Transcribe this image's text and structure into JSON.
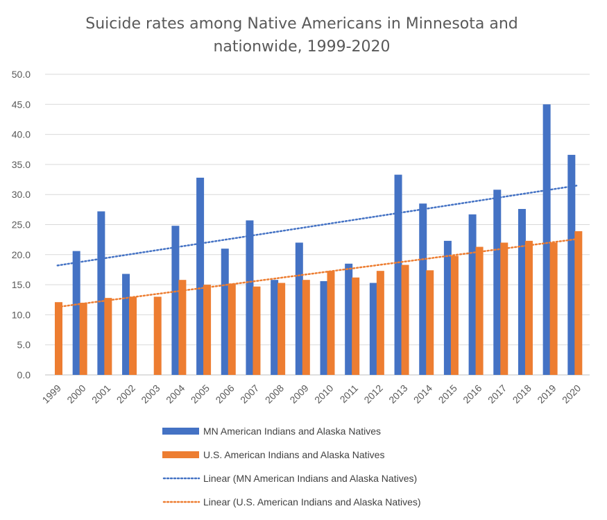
{
  "chart_data": {
    "type": "bar",
    "title": "Suicide rates among Native Americans in Minnesota and nationwide, 1999-2020",
    "categories": [
      "1999",
      "2000",
      "2001",
      "2002",
      "2003",
      "2004",
      "2005",
      "2006",
      "2007",
      "2008",
      "2009",
      "2010",
      "2011",
      "2012",
      "2013",
      "2014",
      "2015",
      "2016",
      "2017",
      "2018",
      "2019",
      "2020"
    ],
    "series": [
      {
        "name": "MN American Indians and Alaska Natives",
        "color": "#4472C4",
        "values": [
          0,
          20.6,
          27.2,
          16.8,
          0,
          24.8,
          32.8,
          21.0,
          25.7,
          15.8,
          22.0,
          15.6,
          18.5,
          15.3,
          33.3,
          28.5,
          22.3,
          26.7,
          30.8,
          27.6,
          45.0,
          36.6
        ]
      },
      {
        "name": "U.S. American Indians and Alaska Natives",
        "color": "#ED7D31",
        "values": [
          12.1,
          12.0,
          12.8,
          13.0,
          13.0,
          15.8,
          15.0,
          15.2,
          14.7,
          15.3,
          15.8,
          17.3,
          16.2,
          17.3,
          18.3,
          17.4,
          19.8,
          21.3,
          22.0,
          22.3,
          22.0,
          23.9
        ]
      }
    ],
    "trendlines": [
      {
        "name": "Linear (MN American Indians and Alaska Natives)",
        "color": "#4472C4",
        "start": 18.2,
        "end": 31.5
      },
      {
        "name": "Linear (U.S. American Indians and Alaska Natives)",
        "color": "#ED7D31",
        "start": 11.3,
        "end": 22.6
      }
    ],
    "ylim": [
      0,
      50
    ],
    "yticks": [
      "0.0",
      "5.0",
      "10.0",
      "15.0",
      "20.0",
      "25.0",
      "30.0",
      "35.0",
      "40.0",
      "45.0",
      "50.0"
    ],
    "grid": true,
    "legend_position": "bottom"
  }
}
